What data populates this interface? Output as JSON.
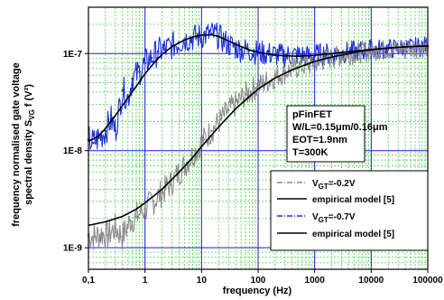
{
  "chart_data": {
    "type": "line",
    "xlabel": "frequency (Hz)",
    "ylabel_line1": "frequency normalised gate voltage",
    "ylabel_line2": "spectral density S",
    "ylabel_sub": "VG",
    "ylabel_tail": " f (V²)",
    "x_scale": "log",
    "y_scale": "log",
    "xlim": [
      0.1,
      100000
    ],
    "ylim": [
      6e-10,
      3e-07
    ],
    "x_ticks": [
      {
        "v": 0.1,
        "label": "0,1"
      },
      {
        "v": 1,
        "label": "1"
      },
      {
        "v": 10,
        "label": "10"
      },
      {
        "v": 100,
        "label": "100"
      },
      {
        "v": 1000,
        "label": "1000"
      },
      {
        "v": 10000,
        "label": "10000"
      },
      {
        "v": 100000,
        "label": "100000"
      }
    ],
    "y_ticks": [
      {
        "v": 1e-09,
        "label": "1E-9"
      },
      {
        "v": 1e-08,
        "label": "1E-8"
      },
      {
        "v": 1e-07,
        "label": "1E-7"
      }
    ],
    "grid": true,
    "colors": {
      "major_grid": "#1a1ad8",
      "minor_grid": "#2ecc2e",
      "gray_series": "#8c8c8c",
      "blue_series": "#1f2fd6",
      "model": "#000000"
    },
    "annotation": {
      "lines": [
        "pFinFET",
        "W/L=0.15μm/0.16μm",
        "EOT=1.9nm",
        "T=300K"
      ]
    },
    "legend": {
      "placement": "bottom-right",
      "entries": [
        {
          "pre": "V",
          "sub": "GT",
          "post": "=-0.2V",
          "style": "gray-dash-dot"
        },
        {
          "pre": "empirical model [5]",
          "sub": "",
          "post": "",
          "style": "black-line"
        },
        {
          "pre": "V",
          "sub": "GT",
          "post": "=-0.7V",
          "style": "blue-dash-dot"
        },
        {
          "pre": "empirical model [5]",
          "sub": "",
          "post": "",
          "style": "black-line"
        }
      ]
    },
    "series": [
      {
        "style": "gray-dash-dot",
        "x": [
          0.1,
          0.13,
          0.17,
          0.22,
          0.3,
          0.4,
          0.55,
          0.7,
          1,
          1.4,
          2,
          2.8,
          4,
          5.5,
          8,
          11,
          15,
          22,
          30,
          45,
          60,
          90,
          130,
          200,
          300,
          500,
          800,
          1200,
          2000,
          3000,
          5000,
          8000,
          13000,
          20000,
          35000,
          60000,
          100000
        ],
        "y": [
          1.35e-09,
          1.3e-09,
          1.4e-09,
          1.35e-09,
          1.6e-09,
          1.3e-09,
          1.9e-09,
          2.1e-09,
          2.5e-09,
          3e-09,
          3.7e-09,
          4.5e-09,
          6e-09,
          7.5e-09,
          1e-08,
          1.3e-08,
          1.6e-08,
          2.1e-08,
          2.6e-08,
          3.2e-08,
          3.8e-08,
          4.4e-08,
          5e-08,
          5.8e-08,
          6.5e-08,
          7.2e-08,
          7.8e-08,
          8.4e-08,
          9e-08,
          9.5e-08,
          1e-07,
          1.05e-07,
          1.08e-07,
          1.1e-07,
          1.12e-07,
          1.13e-07,
          1.15e-07
        ]
      },
      {
        "style": "black-line",
        "x": [
          0.1,
          0.2,
          0.4,
          0.7,
          1,
          2,
          4,
          7,
          10,
          20,
          40,
          70,
          100,
          200,
          400,
          700,
          1000,
          2000,
          4000,
          7000,
          10000,
          20000,
          40000,
          70000,
          100000
        ],
        "y": [
          1.7e-09,
          1.85e-09,
          2.1e-09,
          2.5e-09,
          2.9e-09,
          4e-09,
          6e-09,
          8.5e-09,
          1.1e-08,
          1.75e-08,
          2.7e-08,
          3.6e-08,
          4.3e-08,
          5.6e-08,
          6.8e-08,
          7.7e-08,
          8.3e-08,
          9.2e-08,
          1e-07,
          1.06e-07,
          1.09e-07,
          1.14e-07,
          1.17e-07,
          1.19e-07,
          1.2e-07
        ]
      },
      {
        "style": "blue-dash-dot",
        "x": [
          0.1,
          0.12,
          0.15,
          0.2,
          0.25,
          0.3,
          0.4,
          0.5,
          0.6,
          0.8,
          1,
          1.3,
          1.7,
          2.2,
          3,
          4,
          5,
          7,
          9,
          12,
          15,
          20,
          25,
          30,
          40,
          50,
          70,
          100,
          150,
          200,
          300,
          500,
          800,
          1000,
          1500,
          2000,
          3000,
          5000,
          8000,
          10000,
          20000,
          50000,
          100000
        ],
        "y": [
          1.3e-08,
          1.2e-08,
          1.35e-08,
          1.6e-08,
          2.1e-08,
          1.6e-08,
          4.2e-08,
          3.5e-08,
          5.5e-08,
          6.5e-08,
          8e-08,
          9e-08,
          1.05e-07,
          1.1e-07,
          1.2e-07,
          1.3e-07,
          1.4e-07,
          1.45e-07,
          1.5e-07,
          1.55e-07,
          1.6e-07,
          1.5e-07,
          1.35e-07,
          1.25e-07,
          1.15e-07,
          1.1e-07,
          1.08e-07,
          1.02e-07,
          1e-07,
          9.8e-08,
          9.5e-08,
          9.7e-08,
          9.3e-08,
          9.6e-08,
          1e-07,
          9.7e-08,
          1.02e-07,
          1.05e-07,
          1.08e-07,
          1.1e-07,
          1.12e-07,
          1.15e-07,
          1.2e-07
        ]
      },
      {
        "style": "black-line",
        "x": [
          0.1,
          0.15,
          0.2,
          0.3,
          0.5,
          0.7,
          1,
          1.5,
          2,
          3,
          5,
          7,
          10,
          15,
          20,
          30,
          50,
          70,
          100,
          200,
          500,
          1000,
          2000,
          5000,
          10000,
          20000,
          50000,
          100000
        ],
        "y": [
          1.25e-08,
          1.4e-08,
          1.7e-08,
          2.3e-08,
          3.5e-08,
          4.6e-08,
          6.2e-08,
          8.2e-08,
          9.8e-08,
          1.18e-07,
          1.38e-07,
          1.48e-07,
          1.55e-07,
          1.56e-07,
          1.5e-07,
          1.35e-07,
          1.18e-07,
          1.09e-07,
          1.03e-07,
          9.6e-08,
          9.4e-08,
          9.6e-08,
          1e-07,
          1.06e-07,
          1.1e-07,
          1.14e-07,
          1.18e-07,
          1.2e-07
        ]
      }
    ]
  }
}
